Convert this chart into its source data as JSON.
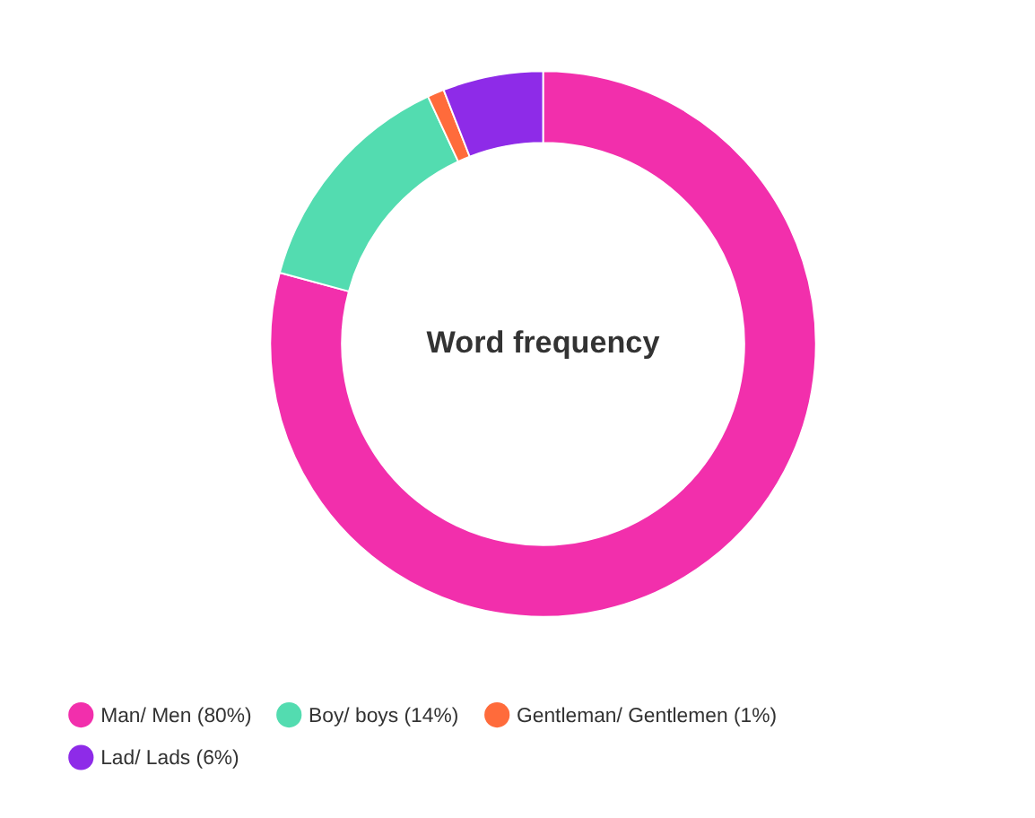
{
  "chart_data": {
    "type": "donut",
    "title": "Word frequency",
    "categories": [
      "Man/ Men (80%)",
      "Boy/ boys (14%)",
      "Gentleman/ Gentlemen (1%)",
      "Lad/ Lads (6%)"
    ],
    "values": [
      80,
      14,
      1,
      6
    ],
    "colors": [
      "#f22fac",
      "#53dcb0",
      "#ff6b3b",
      "#8e2be8"
    ],
    "legend": "bottom"
  }
}
